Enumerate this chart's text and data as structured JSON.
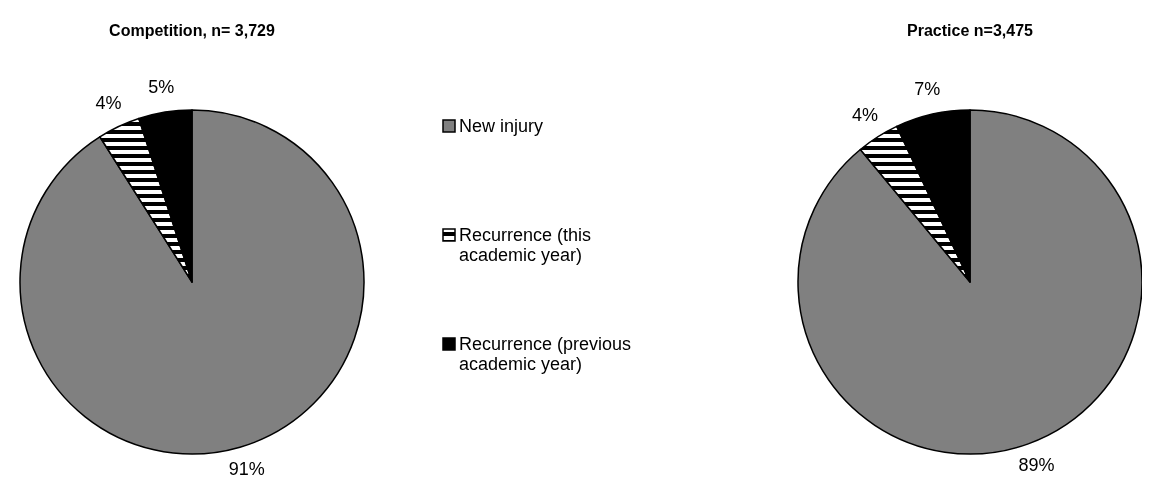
{
  "chart_data": [
    {
      "type": "pie",
      "title": "Competition, n= 3,729",
      "categories": [
        "New injury",
        "Recurrence (this academic year)",
        "Recurrence (previous academic year)"
      ],
      "values": [
        91,
        4,
        5
      ],
      "value_labels": [
        "91%",
        "4%",
        "5%"
      ],
      "colors": [
        "#808080",
        "#000000",
        "#000000"
      ],
      "legend": "right"
    },
    {
      "type": "pie",
      "title": "Practice n=3,475",
      "values": [
        89,
        4,
        7
      ],
      "value_labels": [
        "89%",
        "4%",
        "7%"
      ],
      "colors": [
        "#808080",
        "#000000",
        "#000000"
      ]
    }
  ]
}
